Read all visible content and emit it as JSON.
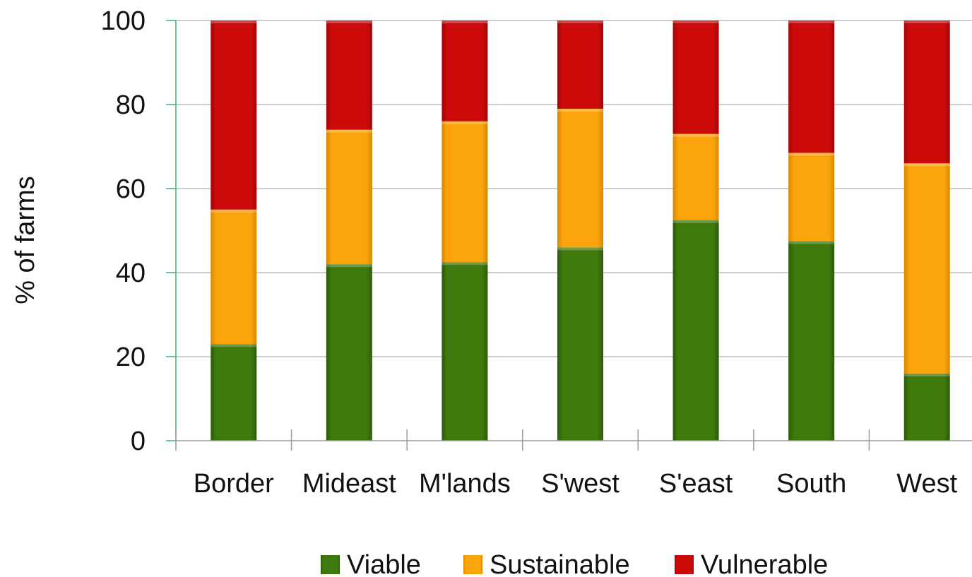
{
  "chart_data": {
    "type": "bar",
    "stacked": true,
    "categories": [
      "Border",
      "Mideast",
      "M'lands",
      "S'west",
      "S'east",
      "South",
      "West"
    ],
    "series": [
      {
        "name": "Viable",
        "color": "#3f7a0d",
        "values": [
          23,
          42,
          42.5,
          46,
          52.5,
          47.5,
          16
        ]
      },
      {
        "name": "Sustainable",
        "color": "#f8a00a",
        "values": [
          32,
          32,
          33.5,
          33,
          20.5,
          21,
          50
        ]
      },
      {
        "name": "Vulnerable",
        "color": "#cc0a0a",
        "values": [
          45,
          26,
          24,
          21,
          27,
          31.5,
          34
        ]
      }
    ],
    "ylabel": "% of farms",
    "ylim": [
      0,
      100
    ],
    "yticks": [
      "0",
      "20",
      "40",
      "60",
      "80",
      "100"
    ],
    "grid": true,
    "legend_position": "bottom"
  }
}
